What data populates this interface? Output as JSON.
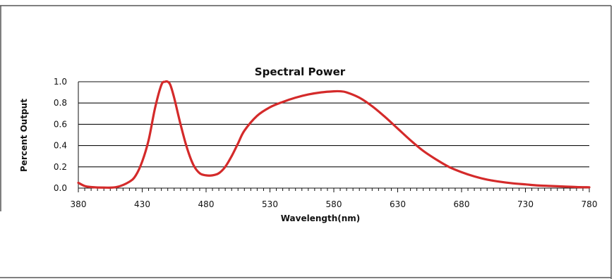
{
  "chart_data": {
    "type": "line",
    "title": "Spectral Power",
    "xlabel": "Wavelength(nm)",
    "ylabel": "Percent Output",
    "xlim": [
      380,
      780
    ],
    "ylim": [
      0,
      1.0
    ],
    "x_ticks": [
      380,
      430,
      480,
      530,
      580,
      630,
      680,
      730,
      780
    ],
    "x_tick_labels": [
      "380",
      "430",
      "480",
      "530",
      "580",
      "630",
      "680",
      "730",
      "780"
    ],
    "y_ticks": [
      0,
      0.2,
      0.4,
      0.6,
      0.8,
      1.0
    ],
    "y_tick_labels": [
      "0.0",
      "0.2",
      "0.4",
      "0.6",
      "0.8",
      "1.0"
    ],
    "grid": "horizontal",
    "legend": "none",
    "series": [
      {
        "color": "#d42a2a",
        "x": [
          380,
          385,
          390,
          400,
          410,
          420,
          425,
          430,
          435,
          440,
          445,
          448,
          450,
          452,
          455,
          460,
          465,
          470,
          475,
          480,
          485,
          490,
          495,
          500,
          505,
          510,
          520,
          530,
          540,
          550,
          560,
          570,
          580,
          585,
          590,
          600,
          610,
          620,
          630,
          640,
          650,
          660,
          670,
          680,
          690,
          700,
          710,
          720,
          730,
          740,
          750,
          760,
          770,
          780
        ],
        "y": [
          0.05,
          0.02,
          0.01,
          0.005,
          0.01,
          0.06,
          0.12,
          0.25,
          0.45,
          0.75,
          0.97,
          1.0,
          1.0,
          0.97,
          0.85,
          0.6,
          0.38,
          0.22,
          0.14,
          0.12,
          0.12,
          0.14,
          0.2,
          0.3,
          0.42,
          0.54,
          0.68,
          0.76,
          0.81,
          0.85,
          0.88,
          0.9,
          0.91,
          0.91,
          0.9,
          0.85,
          0.77,
          0.67,
          0.56,
          0.45,
          0.35,
          0.27,
          0.2,
          0.15,
          0.11,
          0.08,
          0.06,
          0.045,
          0.035,
          0.025,
          0.02,
          0.015,
          0.01,
          0.008
        ]
      }
    ]
  }
}
